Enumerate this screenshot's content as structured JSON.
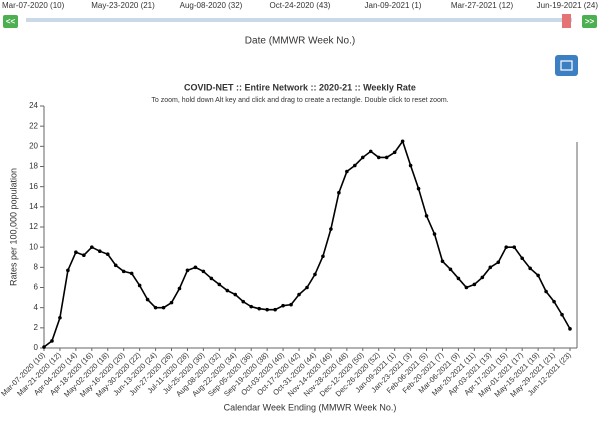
{
  "ui": {
    "slider_labels": [
      "Mar-07-2020 (10)",
      "May-23-2020 (21)",
      "Aug-08-2020 (32)",
      "Oct-24-2020 (43)",
      "Jan-09-2021 (1)",
      "Mar-27-2021 (12)",
      "Jun-19-2021 (24)"
    ],
    "prev_button": "<<",
    "next_button": ">>",
    "slider_title": "Date (MMWR Week No.)"
  },
  "chart_data": {
    "type": "line",
    "title": "COVID-NET :: Entire Network :: 2020-21 :: Weekly Rate",
    "subtitle": "To zoom, hold down Alt key and click and drag to create a rectangle. Double click to reset zoom.",
    "x_label": "Calendar Week Ending (MMWR Week No.)",
    "y_label": "Rates per 100,000 population",
    "categories": [
      "Mar-07-2020 (10)",
      null,
      "Mar-21-2020 (12)",
      null,
      "Apr-04-2020 (14)",
      null,
      "Apr-18-2020 (16)",
      null,
      "May-02-2020 (18)",
      null,
      "May-16-2020 (20)",
      null,
      "May-30-2020 (22)",
      null,
      "Jun-13-2020 (24)",
      null,
      "Jun-27-2020 (26)",
      null,
      "Jul-11-2020 (28)",
      null,
      "Jul-25-2020 (30)",
      null,
      "Aug-08-2020 (32)",
      null,
      "Aug-22-2020 (34)",
      null,
      "Sep-05-2020 (36)",
      null,
      "Sep-19-2020 (38)",
      null,
      "Oct-03-2020 (40)",
      null,
      "Oct-17-2020 (42)",
      null,
      "Oct-31-2020 (44)",
      null,
      "Nov-14-2020 (46)",
      null,
      "Nov-28-2020 (48)",
      null,
      "Dec-12-2020 (50)",
      null,
      "Dec-26-2020 (52)",
      null,
      "Jan-09-2021 (1)",
      null,
      "Jan-23-2021 (3)",
      null,
      "Feb-06-2021 (5)",
      null,
      "Feb-20-2021 (7)",
      null,
      "Mar-06-2021 (9)",
      null,
      "Mar-20-2021 (11)",
      null,
      "Apr-03-2021 (13)",
      null,
      "Apr-17-2021 (15)",
      null,
      "May-01-2021 (17)",
      null,
      "May-15-2021 (19)",
      null,
      "May-29-2021 (21)",
      null,
      "Jun-12-2021 (23)"
    ],
    "series": [
      {
        "color": "#000000",
        "values": [
          0.1,
          0.7,
          3.0,
          7.7,
          9.5,
          9.2,
          10.0,
          9.6,
          9.3,
          8.2,
          7.6,
          7.4,
          6.2,
          4.8,
          4.0,
          4.0,
          4.5,
          5.9,
          7.7,
          8.0,
          7.6,
          6.9,
          6.3,
          5.7,
          5.3,
          4.6,
          4.1,
          3.9,
          3.8,
          3.8,
          4.2,
          4.3,
          5.3,
          6.0,
          7.3,
          9.1,
          11.8,
          15.4,
          17.5,
          18.1,
          18.9,
          19.5,
          18.9,
          18.9,
          19.4,
          20.5,
          18.1,
          15.8,
          13.1,
          11.3,
          8.6,
          7.8,
          6.9,
          6.0,
          6.3,
          7.0,
          8.0,
          8.5,
          10.0,
          10.0,
          8.9,
          7.9,
          7.2,
          5.6,
          4.6,
          3.3,
          1.9
        ]
      }
    ],
    "ylim": [
      0,
      24
    ],
    "yticks": [
      0,
      2,
      4,
      6,
      8,
      10,
      12,
      14,
      16,
      18,
      20,
      22,
      24
    ],
    "grid": false
  }
}
